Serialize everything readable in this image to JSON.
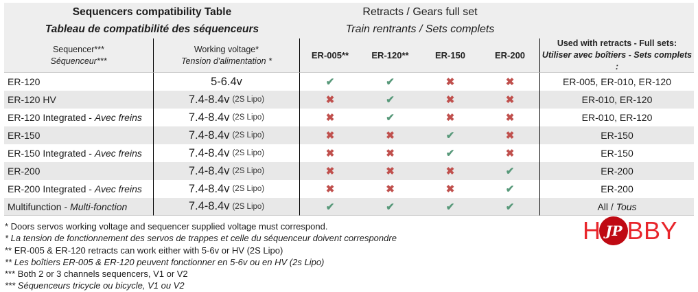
{
  "header": {
    "left_title": "Sequencers compatibility Table",
    "left_subtitle": "Tableau de compatibilité des séquenceurs",
    "right_title": "Retracts / Gears full set",
    "right_subtitle": "Train rentrants / Sets complets"
  },
  "columns": {
    "sequencer": {
      "en": "Sequencer***",
      "fr": "Séquenceur***"
    },
    "voltage": {
      "en": "Working voltage*",
      "fr": "Tension d'alimentation *"
    },
    "marks": [
      "ER-005**",
      "ER-120**",
      "ER-150",
      "ER-200"
    ],
    "used_with": {
      "en": "Used with retracts - Full sets:",
      "fr": "Utiliser avec boîtiers - Sets complets :"
    }
  },
  "rows": [
    {
      "name": "ER-120",
      "name_italic": "",
      "voltage": "5-6.4v",
      "voltage_note": "",
      "marks": [
        "check",
        "check",
        "cross",
        "cross"
      ],
      "used_with": "ER-005, ER-010, ER-120",
      "used_with_italic": ""
    },
    {
      "name": "ER-120 HV",
      "name_italic": "",
      "voltage": "7.4-8.4v",
      "voltage_note": "(2S Lipo)",
      "marks": [
        "cross",
        "check",
        "cross",
        "cross"
      ],
      "used_with": "ER-010, ER-120",
      "used_with_italic": ""
    },
    {
      "name": "ER-120 Integrated - ",
      "name_italic": "Avec freins",
      "voltage": "7.4-8.4v",
      "voltage_note": "(2S Lipo)",
      "marks": [
        "cross",
        "check",
        "cross",
        "cross"
      ],
      "used_with": "ER-010, ER-120",
      "used_with_italic": ""
    },
    {
      "name": "ER-150",
      "name_italic": "",
      "voltage": "7.4-8.4v",
      "voltage_note": "(2S Lipo)",
      "marks": [
        "cross",
        "cross",
        "check",
        "cross"
      ],
      "used_with": "ER-150",
      "used_with_italic": ""
    },
    {
      "name": "ER-150 Integrated - ",
      "name_italic": "Avec freins",
      "voltage": "7.4-8.4v",
      "voltage_note": "(2S Lipo)",
      "marks": [
        "cross",
        "cross",
        "check",
        "cross"
      ],
      "used_with": "ER-150",
      "used_with_italic": ""
    },
    {
      "name": "ER-200",
      "name_italic": "",
      "voltage": "7.4-8.4v",
      "voltage_note": "(2S Lipo)",
      "marks": [
        "cross",
        "cross",
        "cross",
        "check"
      ],
      "used_with": "ER-200",
      "used_with_italic": ""
    },
    {
      "name": "ER-200 Integrated - ",
      "name_italic": "Avec freins",
      "voltage": "7.4-8.4v",
      "voltage_note": "(2S Lipo)",
      "marks": [
        "cross",
        "cross",
        "cross",
        "check"
      ],
      "used_with": "ER-200",
      "used_with_italic": ""
    },
    {
      "name": "Multifunction - ",
      "name_italic": "Multi-fonction",
      "voltage": "7.4-8.4v",
      "voltage_note": "(2S Lipo)",
      "marks": [
        "check",
        "check",
        "check",
        "check"
      ],
      "used_with": "All / ",
      "used_with_italic": "Tous"
    }
  ],
  "footnotes": [
    {
      "text": "* Doors servos working voltage and sequencer supplied voltage must correspond.",
      "italic": false
    },
    {
      "text": "* La tension de fonctionnement des servos de trappes et celle du séquenceur doivent correspondre",
      "italic": true
    },
    {
      "text": "** ER-005 & ER-120 retracts can work either with 5-6v or HV (2S Lipo)",
      "italic": false
    },
    {
      "text": "** Les boîtiers ER-005 & ER-120 peuvent fonctionner en 5-6v ou en HV (2s Lipo)",
      "italic": true
    },
    {
      "text": "*** Both 2 or 3 channels sequencers, V1 or V2",
      "italic": false
    },
    {
      "text": "*** Séquenceurs tricycle ou bicycle, V1 ou V2",
      "italic": true
    }
  ],
  "symbols": {
    "check": "✔",
    "cross": "✖"
  },
  "logo": {
    "prefix": "H",
    "circle_text": "JP",
    "suffix": "BBY"
  },
  "colors": {
    "check_green": "#58997a",
    "cross_red": "#c0504d",
    "header_bg": "#eeeeee",
    "row_alt_bg": "#e8e8e8",
    "logo_red": "#e8262c",
    "logo_circle_red": "#bf0a13"
  }
}
